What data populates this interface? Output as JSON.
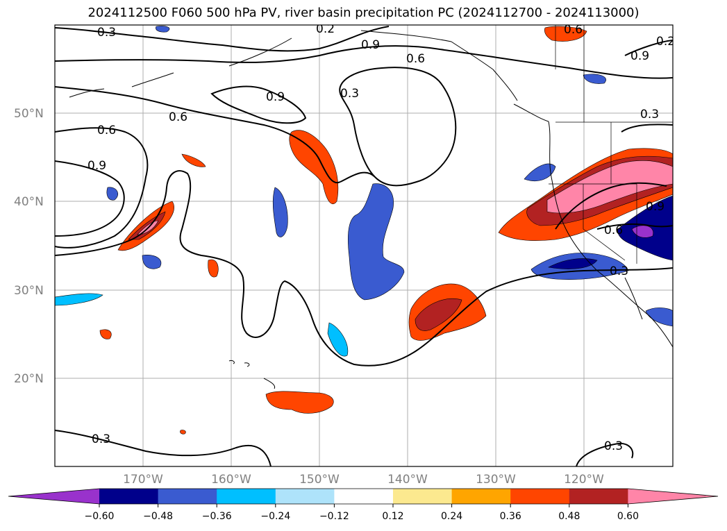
{
  "title": "2024112500 F060 500 hPa PV, river basin precipitation PC (2024112700 - 2024113000)",
  "lat_labels": [
    "50°N",
    "40°N",
    "30°N",
    "20°N"
  ],
  "lon_labels": [
    "170°W",
    "160°W",
    "150°W",
    "140°W",
    "130°W",
    "120°W"
  ],
  "contour_labels": [
    "0.3",
    "0.6",
    "0.9",
    "0.6",
    "0.9",
    "0.6",
    "0.9",
    "0.3",
    "0.3",
    "0.6",
    "0.9",
    "0.3",
    "0.6",
    "0.3",
    "0.3",
    "0.3",
    "0.6",
    "0.9",
    "0.2",
    "0.2"
  ],
  "colorbar": {
    "ticks": [
      "−0.60",
      "−0.48",
      "−0.36",
      "−0.24",
      "−0.12",
      "0.12",
      "0.24",
      "0.36",
      "0.48",
      "0.60"
    ],
    "colors": [
      "#9932cc",
      "#00008b",
      "#3a5bd0",
      "#00bfff",
      "#aee3fa",
      "#ffffff",
      "#fce98f",
      "#ffa500",
      "#ff4500",
      "#b22222",
      "#ff85a8"
    ]
  }
}
